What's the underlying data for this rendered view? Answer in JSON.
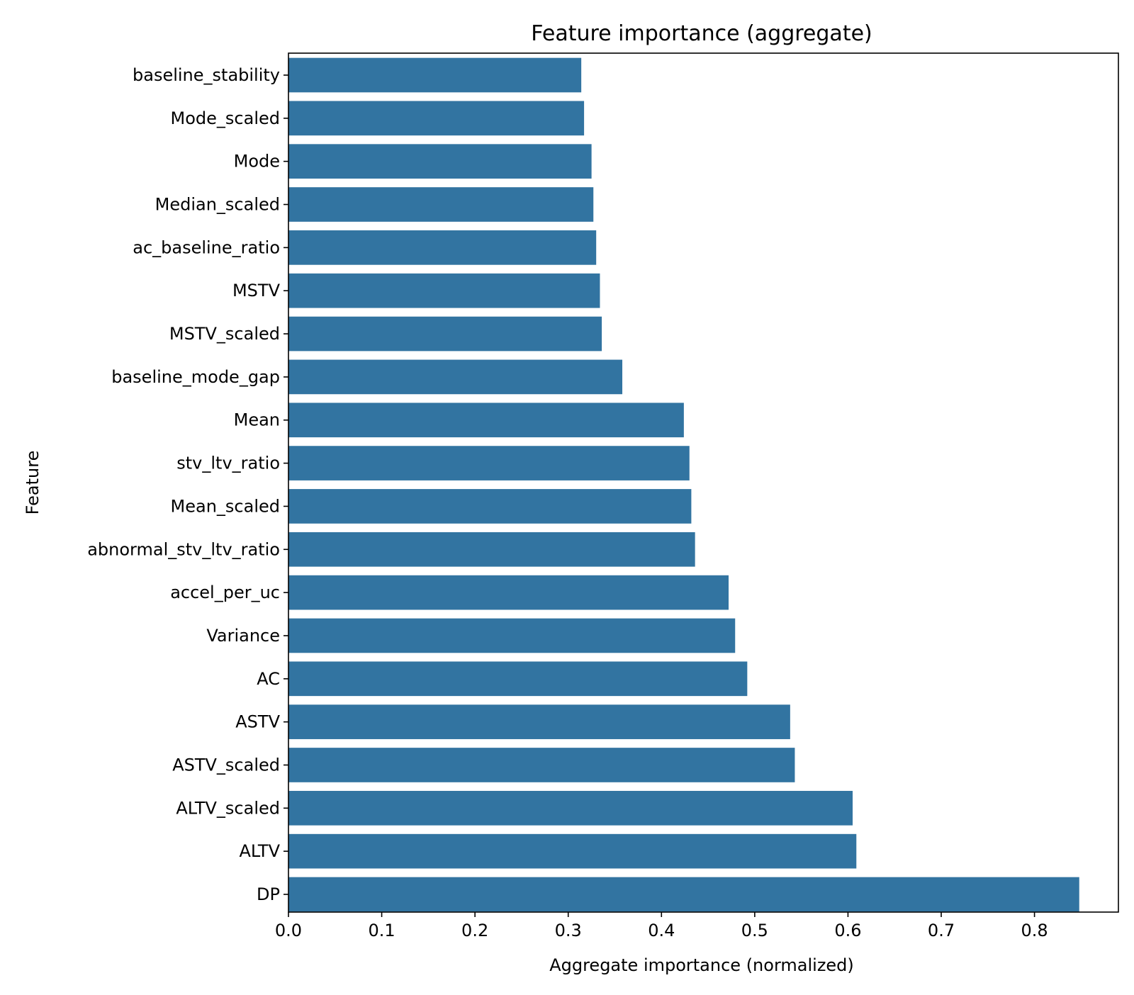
{
  "chart_data": {
    "type": "bar",
    "orientation": "horizontal",
    "title": "Feature importance (aggregate)",
    "xlabel": "Aggregate importance (normalized)",
    "ylabel": "Feature",
    "xlim": [
      0,
      0.89
    ],
    "xticks": [
      "0.0",
      "0.1",
      "0.2",
      "0.3",
      "0.4",
      "0.5",
      "0.6",
      "0.7",
      "0.8"
    ],
    "grid": false,
    "legend": "none",
    "bar_color": "#3274a1",
    "categories": [
      "baseline_stability",
      "Mode_scaled",
      "Mode",
      "Median_scaled",
      "ac_baseline_ratio",
      "MSTV",
      "MSTV_scaled",
      "baseline_mode_gap",
      "Mean",
      "stv_ltv_ratio",
      "Mean_scaled",
      "abnormal_stv_ltv_ratio",
      "accel_per_uc",
      "Variance",
      "AC",
      "ASTV",
      "ASTV_scaled",
      "ALTV_scaled",
      "ALTV",
      "DP"
    ],
    "values": [
      0.314,
      0.317,
      0.325,
      0.327,
      0.33,
      0.334,
      0.336,
      0.358,
      0.424,
      0.43,
      0.432,
      0.436,
      0.472,
      0.479,
      0.492,
      0.538,
      0.543,
      0.605,
      0.609,
      0.848
    ]
  }
}
